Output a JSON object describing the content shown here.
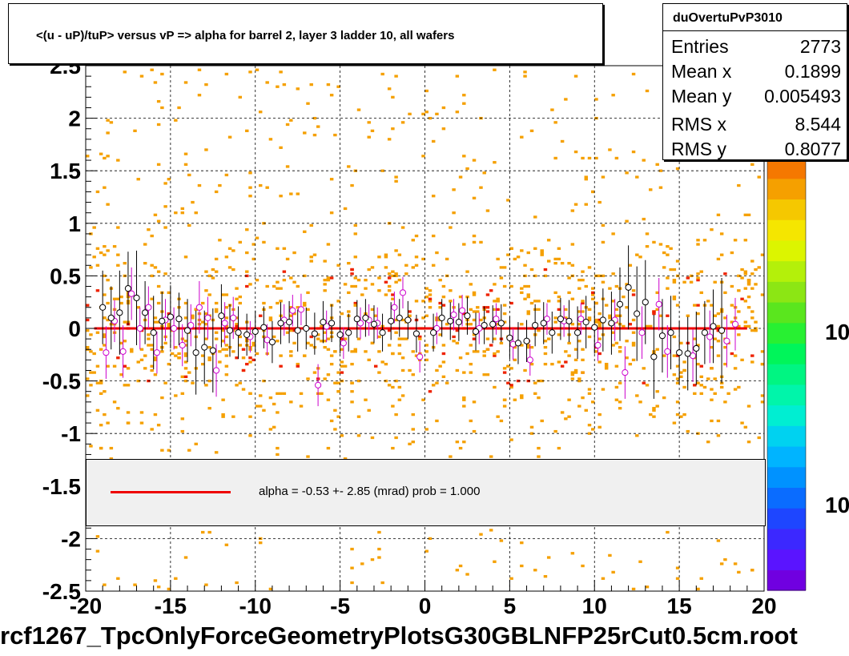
{
  "chart_data": {
    "type": "scatter",
    "title": "<(u - uP)/tuP> versus   vP => alpha for barrel 2, layer 3 ladder 10, all wafers",
    "xlim": [
      -20,
      20
    ],
    "ylim": [
      -2.5,
      2.5
    ],
    "x_ticks": [
      "-20",
      "-15",
      "-10",
      "-5",
      "0",
      "5",
      "10",
      "15",
      "20"
    ],
    "y_ticks": [
      "-2.5",
      "-2",
      "-1.5",
      "-1",
      "-0.5",
      "0",
      "0.5",
      "1",
      "1.5",
      "2",
      "2.5"
    ],
    "grid": true,
    "colorbar_ticks": [
      "10",
      "10"
    ],
    "profile_black": [
      {
        "x": -19.0,
        "y": 0.2,
        "e": 0.35
      },
      {
        "x": -18.5,
        "y": 0.1,
        "e": 0.3
      },
      {
        "x": -18.0,
        "y": 0.15,
        "e": 0.4
      },
      {
        "x": -17.5,
        "y": 0.38,
        "e": 0.35
      },
      {
        "x": -17.0,
        "y": 0.29,
        "e": 0.45
      },
      {
        "x": -16.5,
        "y": 0.15,
        "e": 0.3
      },
      {
        "x": -16.0,
        "y": -0.04,
        "e": 0.35
      },
      {
        "x": -15.5,
        "y": 0.07,
        "e": 0.28
      },
      {
        "x": -15.0,
        "y": 0.11,
        "e": 0.3
      },
      {
        "x": -14.5,
        "y": 0.09,
        "e": 0.25
      },
      {
        "x": -14.0,
        "y": -0.02,
        "e": 0.3
      },
      {
        "x": -13.5,
        "y": -0.23,
        "e": 0.4
      },
      {
        "x": -13.0,
        "y": -0.18,
        "e": 0.35
      },
      {
        "x": -12.5,
        "y": -0.21,
        "e": 0.4
      },
      {
        "x": -12.0,
        "y": 0.12,
        "e": 0.3
      },
      {
        "x": -11.5,
        "y": -0.02,
        "e": 0.25
      },
      {
        "x": -11.0,
        "y": -0.04,
        "e": 0.25
      },
      {
        "x": -10.5,
        "y": -0.06,
        "e": 0.2
      },
      {
        "x": -10.0,
        "y": -0.03,
        "e": 0.2
      },
      {
        "x": -9.5,
        "y": 0.01,
        "e": 0.2
      },
      {
        "x": -9.0,
        "y": -0.13,
        "e": 0.2
      },
      {
        "x": -8.5,
        "y": 0.05,
        "e": 0.2
      },
      {
        "x": -8.0,
        "y": 0.06,
        "e": 0.2
      },
      {
        "x": -7.5,
        "y": -0.02,
        "e": 0.2
      },
      {
        "x": -7.0,
        "y": 0.0,
        "e": 0.2
      },
      {
        "x": -6.5,
        "y": -0.05,
        "e": 0.2
      },
      {
        "x": -6.0,
        "y": 0.06,
        "e": 0.2
      },
      {
        "x": -5.5,
        "y": 0.05,
        "e": 0.18
      },
      {
        "x": -5.0,
        "y": -0.06,
        "e": 0.18
      },
      {
        "x": -4.5,
        "y": -0.04,
        "e": 0.18
      },
      {
        "x": -4.0,
        "y": 0.09,
        "e": 0.18
      },
      {
        "x": -3.5,
        "y": 0.1,
        "e": 0.18
      },
      {
        "x": -3.0,
        "y": 0.04,
        "e": 0.18
      },
      {
        "x": -2.5,
        "y": -0.04,
        "e": 0.18
      },
      {
        "x": -2.0,
        "y": 0.07,
        "e": 0.18
      },
      {
        "x": -1.5,
        "y": 0.1,
        "e": 0.18
      },
      {
        "x": -1.0,
        "y": 0.08,
        "e": 0.18
      },
      {
        "x": -0.5,
        "y": -0.05,
        "e": 0.18
      },
      {
        "x": 0.5,
        "y": -0.04,
        "e": 0.18
      },
      {
        "x": 1.0,
        "y": 0.1,
        "e": 0.18
      },
      {
        "x": 1.5,
        "y": 0.07,
        "e": 0.18
      },
      {
        "x": 2.0,
        "y": 0.06,
        "e": 0.18
      },
      {
        "x": 2.5,
        "y": 0.12,
        "e": 0.18
      },
      {
        "x": 3.0,
        "y": -0.03,
        "e": 0.18
      },
      {
        "x": 3.5,
        "y": 0.03,
        "e": 0.18
      },
      {
        "x": 4.0,
        "y": 0.04,
        "e": 0.18
      },
      {
        "x": 4.5,
        "y": 0.05,
        "e": 0.18
      },
      {
        "x": 5.0,
        "y": -0.09,
        "e": 0.2
      },
      {
        "x": 5.5,
        "y": -0.14,
        "e": 0.2
      },
      {
        "x": 6.0,
        "y": -0.12,
        "e": 0.2
      },
      {
        "x": 6.5,
        "y": 0.03,
        "e": 0.2
      },
      {
        "x": 7.0,
        "y": 0.05,
        "e": 0.2
      },
      {
        "x": 7.5,
        "y": -0.04,
        "e": 0.2
      },
      {
        "x": 8.0,
        "y": 0.09,
        "e": 0.2
      },
      {
        "x": 8.5,
        "y": 0.07,
        "e": 0.2
      },
      {
        "x": 9.0,
        "y": -0.04,
        "e": 0.25
      },
      {
        "x": 9.5,
        "y": 0.06,
        "e": 0.25
      },
      {
        "x": 10.0,
        "y": 0.01,
        "e": 0.25
      },
      {
        "x": 10.5,
        "y": 0.08,
        "e": 0.3
      },
      {
        "x": 11.0,
        "y": 0.05,
        "e": 0.3
      },
      {
        "x": 11.5,
        "y": 0.23,
        "e": 0.35
      },
      {
        "x": 12.0,
        "y": 0.39,
        "e": 0.4
      },
      {
        "x": 12.5,
        "y": 0.14,
        "e": 0.45
      },
      {
        "x": 13.0,
        "y": 0.25,
        "e": 0.4
      },
      {
        "x": 13.5,
        "y": -0.27,
        "e": 0.4
      },
      {
        "x": 14.0,
        "y": -0.07,
        "e": 0.35
      },
      {
        "x": 14.5,
        "y": -0.04,
        "e": 0.35
      },
      {
        "x": 15.0,
        "y": -0.23,
        "e": 0.3
      },
      {
        "x": 15.5,
        "y": -0.24,
        "e": 0.35
      },
      {
        "x": 16.0,
        "y": -0.19,
        "e": 0.35
      },
      {
        "x": 16.5,
        "y": -0.04,
        "e": 0.3
      },
      {
        "x": 17.0,
        "y": 0.02,
        "e": 0.35
      },
      {
        "x": 17.5,
        "y": -0.02,
        "e": 0.5
      }
    ],
    "profile_magenta": [
      {
        "x": -18.8,
        "y": -0.23,
        "e": 0.25
      },
      {
        "x": -18.3,
        "y": 0.07,
        "e": 0.2
      },
      {
        "x": -17.8,
        "y": -0.22,
        "e": 0.25
      },
      {
        "x": -17.3,
        "y": 0.33,
        "e": 0.25
      },
      {
        "x": -16.8,
        "y": 0.0,
        "e": 0.2
      },
      {
        "x": -16.3,
        "y": 0.2,
        "e": 0.2
      },
      {
        "x": -15.8,
        "y": -0.23,
        "e": 0.2
      },
      {
        "x": -15.3,
        "y": 0.08,
        "e": 0.2
      },
      {
        "x": -14.8,
        "y": 0.0,
        "e": 0.2
      },
      {
        "x": -14.3,
        "y": -0.16,
        "e": 0.2
      },
      {
        "x": -13.8,
        "y": 0.03,
        "e": 0.2
      },
      {
        "x": -13.3,
        "y": 0.2,
        "e": 0.25
      },
      {
        "x": -12.8,
        "y": 0.1,
        "e": 0.2
      },
      {
        "x": -12.3,
        "y": -0.4,
        "e": 0.25
      },
      {
        "x": -11.8,
        "y": 0.05,
        "e": 0.2
      },
      {
        "x": -11.3,
        "y": 0.1,
        "e": 0.2
      },
      {
        "x": -10.3,
        "y": -0.08,
        "e": 0.15
      },
      {
        "x": -9.3,
        "y": -0.11,
        "e": 0.15
      },
      {
        "x": -8.3,
        "y": 0.08,
        "e": 0.15
      },
      {
        "x": -7.8,
        "y": 0.17,
        "e": 0.15
      },
      {
        "x": -7.3,
        "y": 0.18,
        "e": 0.15
      },
      {
        "x": -6.3,
        "y": -0.54,
        "e": 0.2
      },
      {
        "x": -5.8,
        "y": 0.02,
        "e": 0.15
      },
      {
        "x": -4.8,
        "y": -0.14,
        "e": 0.15
      },
      {
        "x": -3.8,
        "y": 0.05,
        "e": 0.15
      },
      {
        "x": -3.3,
        "y": 0.08,
        "e": 0.15
      },
      {
        "x": -2.8,
        "y": 0.05,
        "e": 0.15
      },
      {
        "x": -1.8,
        "y": 0.2,
        "e": 0.15
      },
      {
        "x": -1.3,
        "y": 0.34,
        "e": 0.15
      },
      {
        "x": -0.3,
        "y": -0.27,
        "e": 0.15
      },
      {
        "x": 0.7,
        "y": 0.0,
        "e": 0.15
      },
      {
        "x": 1.7,
        "y": 0.13,
        "e": 0.15
      },
      {
        "x": 2.2,
        "y": 0.17,
        "e": 0.15
      },
      {
        "x": 3.2,
        "y": 0.0,
        "e": 0.15
      },
      {
        "x": 4.2,
        "y": 0.09,
        "e": 0.15
      },
      {
        "x": 5.2,
        "y": -0.15,
        "e": 0.15
      },
      {
        "x": 6.2,
        "y": -0.3,
        "e": 0.15
      },
      {
        "x": 7.2,
        "y": 0.09,
        "e": 0.15
      },
      {
        "x": 8.2,
        "y": 0.07,
        "e": 0.15
      },
      {
        "x": 9.2,
        "y": 0.09,
        "e": 0.15
      },
      {
        "x": 10.2,
        "y": -0.16,
        "e": 0.15
      },
      {
        "x": 11.2,
        "y": 0.08,
        "e": 0.2
      },
      {
        "x": 11.8,
        "y": -0.42,
        "e": 0.25
      },
      {
        "x": 12.8,
        "y": -0.04,
        "e": 0.25
      },
      {
        "x": 13.8,
        "y": 0.23,
        "e": 0.25
      },
      {
        "x": 14.3,
        "y": -0.22,
        "e": 0.25
      },
      {
        "x": 15.8,
        "y": -0.26,
        "e": 0.25
      },
      {
        "x": 16.8,
        "y": -0.08,
        "e": 0.25
      },
      {
        "x": 17.8,
        "y": -0.12,
        "e": 0.25
      },
      {
        "x": 18.3,
        "y": 0.04,
        "e": 0.25
      }
    ],
    "fit_line": {
      "x": [
        -19.5,
        19.0
      ],
      "y": [
        0.0,
        0.0
      ],
      "color": "#ee0000"
    },
    "colors": {
      "hist_main": "#f5a000",
      "hist_hot": "#ee2200",
      "profile_black": "#000000",
      "profile_magenta": "#cc00cc",
      "legend_fill": "#f0f0f0"
    }
  },
  "title_box": {
    "text": "<(u - uP)/tuP> versus   vP => alpha for barrel 2, layer 3 ladder 10, all wafers"
  },
  "stats": {
    "name": "duOvertuPvP3010",
    "rows": [
      {
        "label": "Entries",
        "value": "2773"
      },
      {
        "label": "Mean x",
        "value": "0.1899"
      },
      {
        "label": "Mean y",
        "value": "0.005493"
      },
      {
        "label": "RMS x",
        "value": "8.544"
      },
      {
        "label": "RMS y",
        "value": "0.8077"
      }
    ]
  },
  "fit_legend": {
    "text": "alpha =   -0.53 +-  2.85 (mrad) prob = 1.000"
  },
  "footer": {
    "text": "rcf1267_TpcOnlyForceGeometryPlotsG30GBLNFP25rCut0.5cm.root"
  }
}
